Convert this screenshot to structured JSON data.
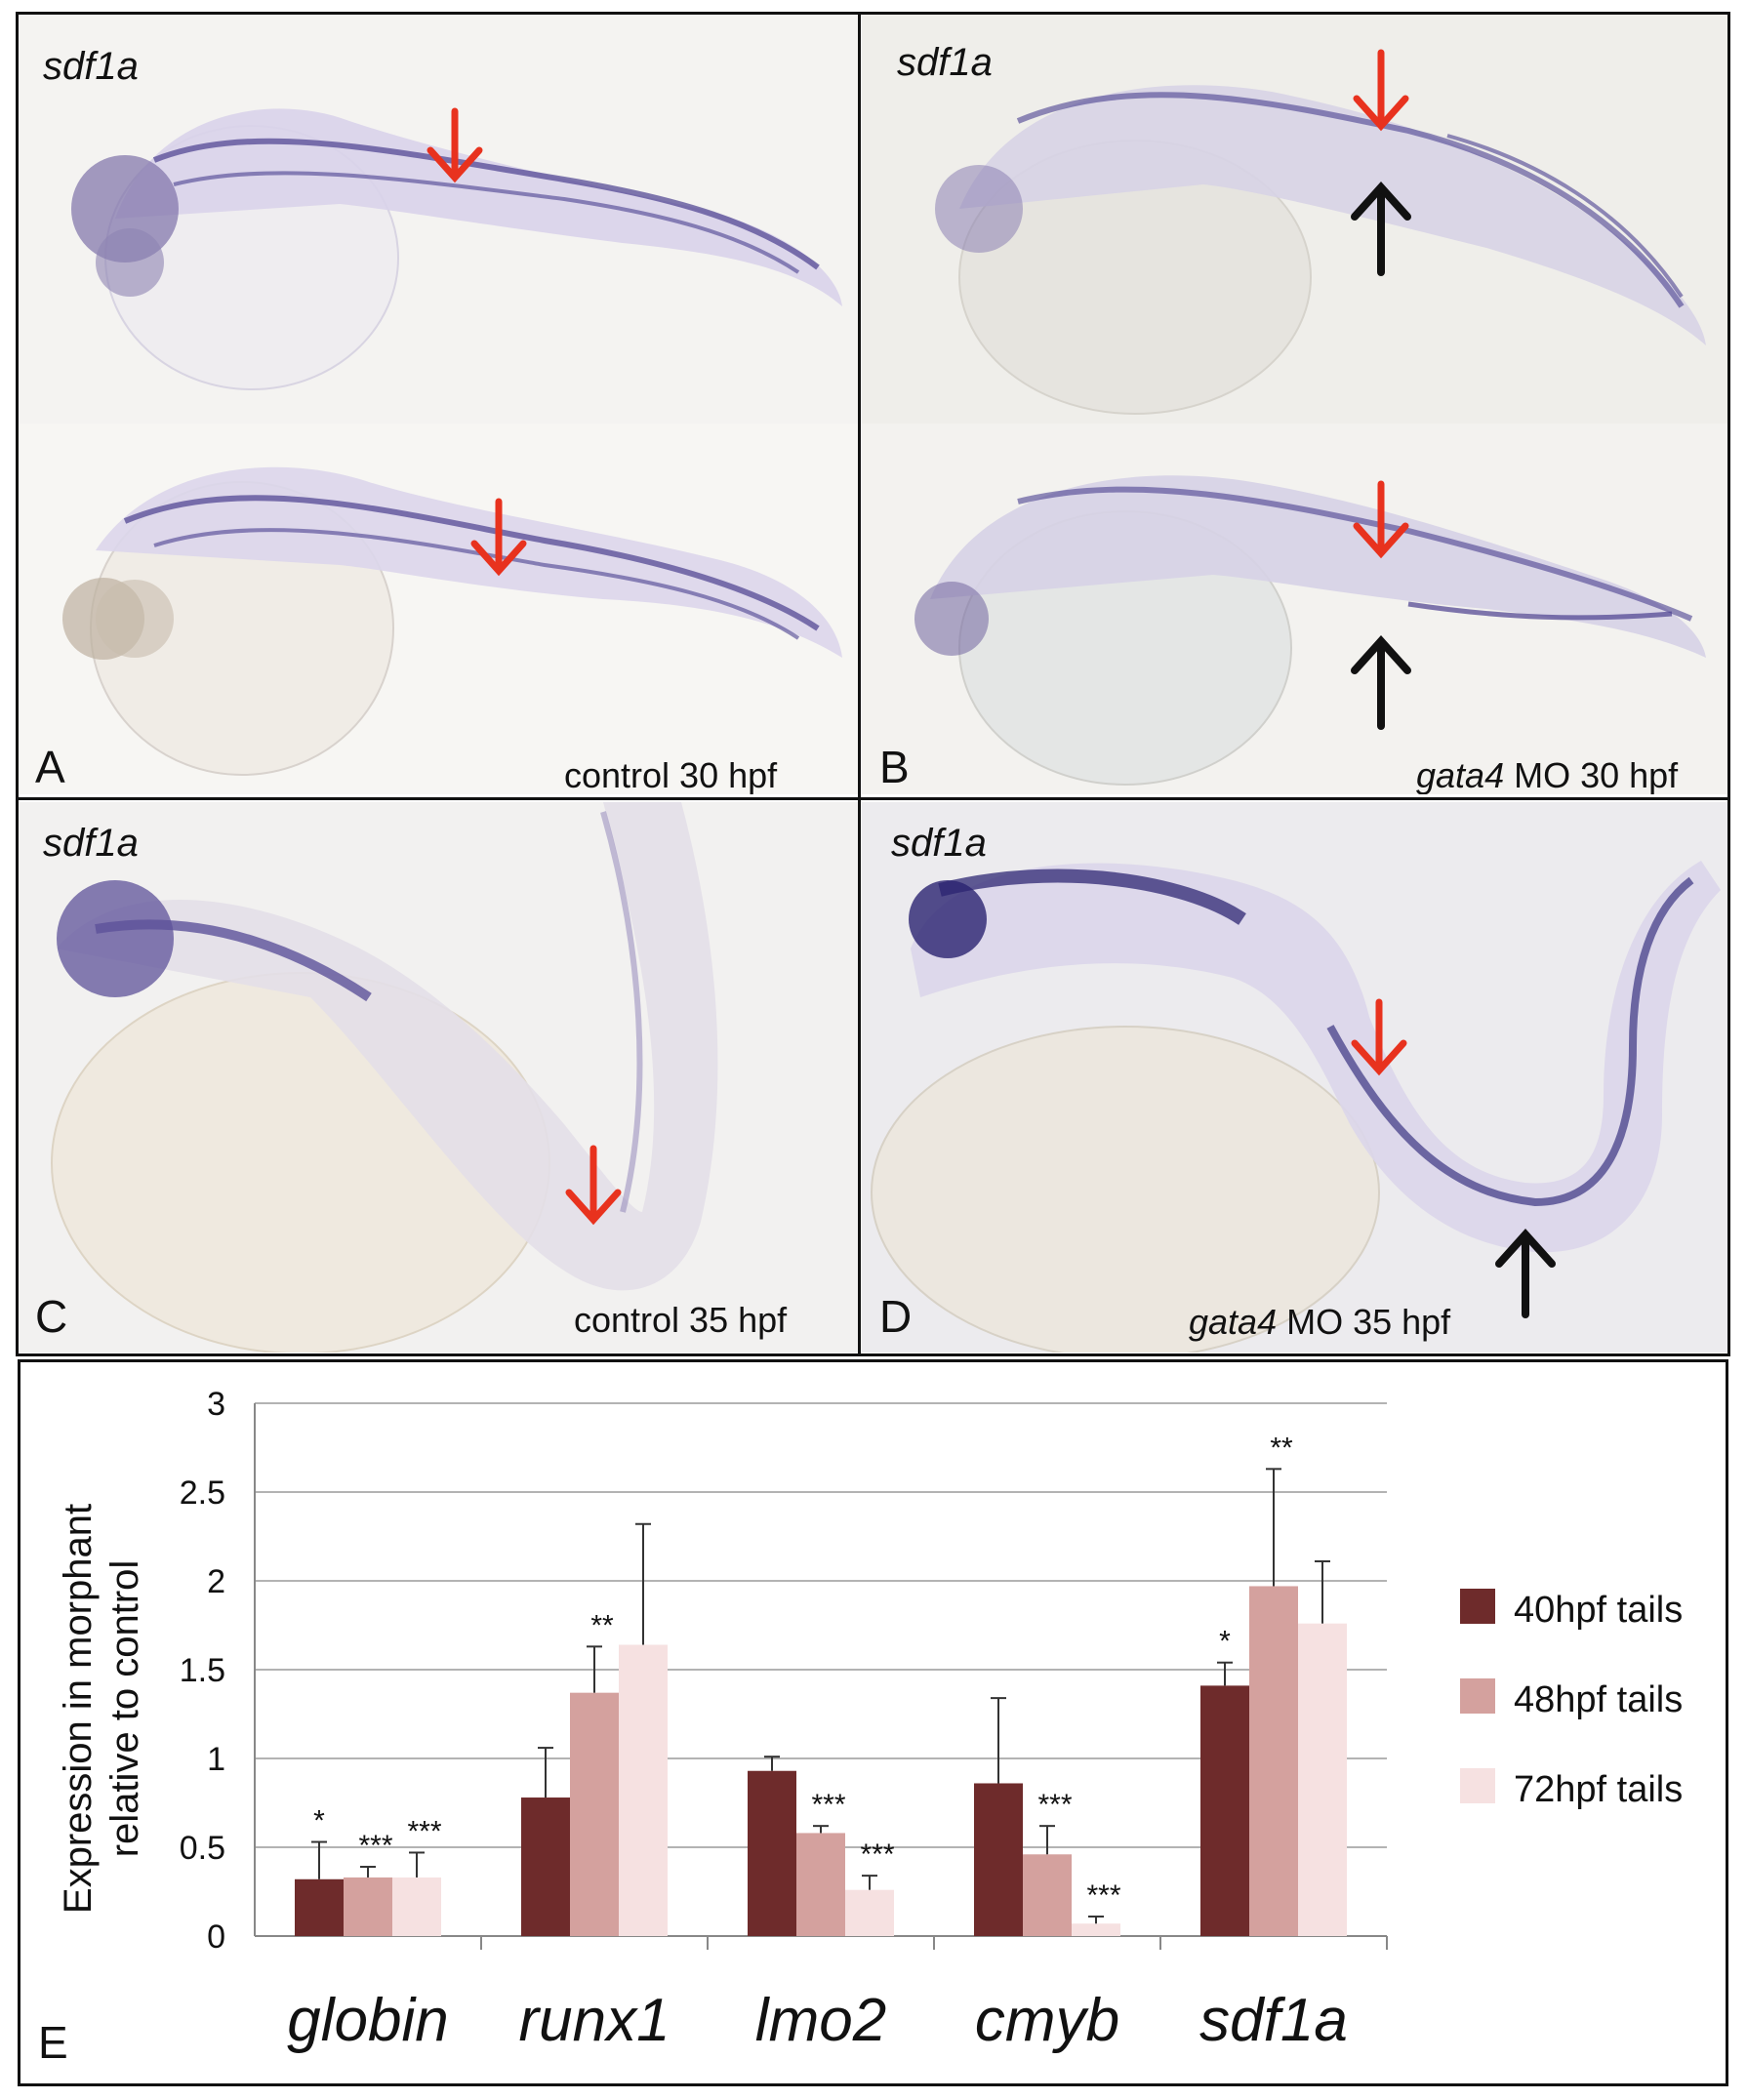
{
  "panels": [
    {
      "id": "A",
      "gene": "sdf1a",
      "gene2": "",
      "caption": "control 30 hpf",
      "caption_italic": "",
      "letter": "A"
    },
    {
      "id": "B",
      "gene": "sdf1a",
      "gene2": "",
      "caption": " MO 30 hpf",
      "caption_italic": "gata4",
      "letter": "B"
    },
    {
      "id": "C",
      "gene": "sdf1a",
      "caption": "control 35 hpf",
      "caption_italic": "",
      "letter": "C"
    },
    {
      "id": "D",
      "gene": "sdf1a",
      "caption": " MO 35 hpf",
      "caption_italic": "gata4",
      "letter": "D"
    }
  ],
  "colors": {
    "embryo_stain": "#4a3f8f",
    "red_arrow": "#e8321e",
    "black_arrow": "#111111",
    "series_40": "#6e2b2b",
    "series_48": "#d4a19e",
    "series_72": "#f6e1e1"
  },
  "chart_panel_letter": "E",
  "chart_data": {
    "type": "bar",
    "categories": [
      "globin",
      "runx1",
      "lmo2",
      "cmyb",
      "sdf1a"
    ],
    "ylabel": "Expression in morphant relative to control",
    "ylabel_line1": "Expression in morphant",
    "ylabel_line2": "relative to control",
    "ylim": [
      0,
      3
    ],
    "yticks": [
      "0",
      "0.5",
      "1",
      "1.5",
      "2",
      "2.5",
      "3"
    ],
    "grid": true,
    "legend_position": "right",
    "series": [
      {
        "name": "40hpf tails",
        "values": [
          0.32,
          0.78,
          0.93,
          0.86,
          1.41
        ],
        "errors": [
          0.21,
          0.28,
          0.08,
          0.48,
          0.13
        ],
        "sig": [
          "*",
          "",
          "",
          "",
          "*"
        ]
      },
      {
        "name": "48hpf tails",
        "values": [
          0.33,
          1.37,
          0.58,
          0.46,
          1.97
        ],
        "errors": [
          0.06,
          0.26,
          0.04,
          0.16,
          0.66
        ],
        "sig": [
          "***",
          "**",
          "***",
          "***",
          "**"
        ]
      },
      {
        "name": "72hpf tails",
        "values": [
          0.33,
          1.64,
          0.26,
          0.07,
          1.76
        ],
        "errors": [
          0.14,
          0.68,
          0.08,
          0.04,
          0.35
        ],
        "sig": [
          "***",
          "",
          "***",
          "***",
          ""
        ]
      }
    ]
  }
}
